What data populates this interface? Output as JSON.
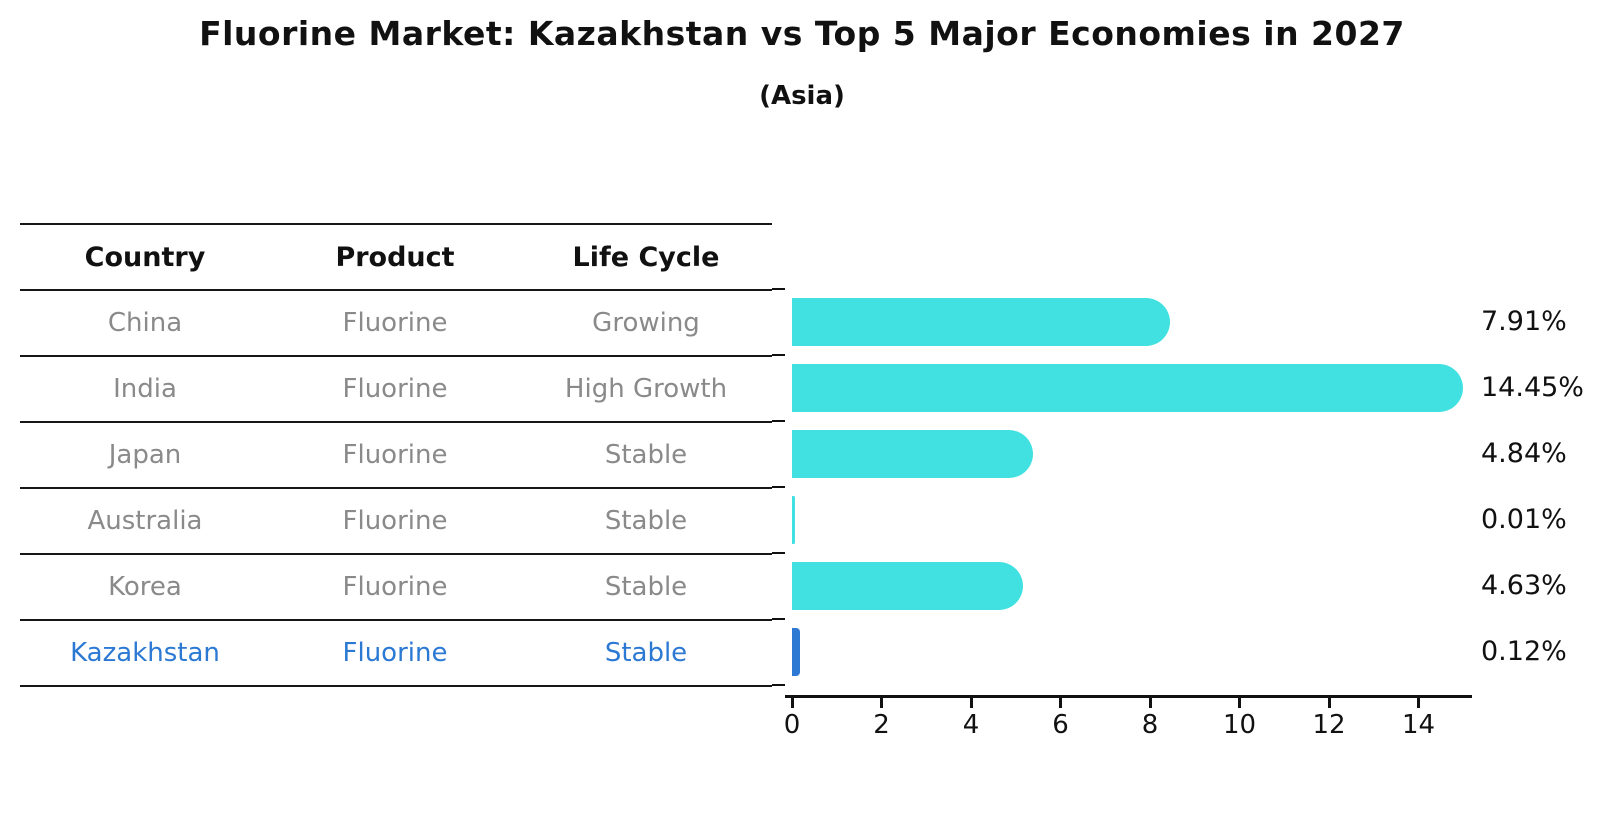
{
  "title": "Fluorine Market: Kazakhstan vs Top 5 Major Economies in 2027",
  "subtitle": "(Asia)",
  "table": {
    "headers": [
      "Country",
      "Product",
      "Life Cycle"
    ],
    "rows": [
      {
        "country": "China",
        "product": "Fluorine",
        "life_cycle": "Growing",
        "highlight": false
      },
      {
        "country": "India",
        "product": "Fluorine",
        "life_cycle": "High Growth",
        "highlight": false
      },
      {
        "country": "Japan",
        "product": "Fluorine",
        "life_cycle": "Stable",
        "highlight": false
      },
      {
        "country": "Australia",
        "product": "Fluorine",
        "life_cycle": "Stable",
        "highlight": false
      },
      {
        "country": "Korea",
        "product": "Fluorine",
        "life_cycle": "Stable",
        "highlight": false
      },
      {
        "country": "Kazakhstan",
        "product": "Fluorine",
        "life_cycle": "Stable",
        "highlight": true
      }
    ]
  },
  "chart_data": {
    "type": "bar",
    "orientation": "horizontal",
    "title": "Fluorine Market: Kazakhstan vs Top 5 Major Economies in 2027",
    "subtitle": "(Asia)",
    "categories": [
      "China",
      "India",
      "Japan",
      "Australia",
      "Korea",
      "Kazakhstan"
    ],
    "values": [
      7.91,
      14.45,
      4.84,
      0.01,
      4.63,
      0.12
    ],
    "value_labels": [
      "7.91%",
      "14.45%",
      "4.84%",
      "0.01%",
      "4.63%",
      "0.12%"
    ],
    "x_ticks": [
      0,
      2,
      4,
      6,
      8,
      10,
      12,
      14
    ],
    "xlim": [
      0,
      15.4
    ],
    "grid": false,
    "legend": false,
    "bar_color": "#42e1e1",
    "highlight_color": "#2c79d4",
    "highlight_index": 5
  },
  "colors": {
    "bar_cyan": "#42e1e1",
    "highlight_blue": "#2c79d4",
    "row_text_gray": "#8a8a8a",
    "text_dark": "#111111"
  }
}
